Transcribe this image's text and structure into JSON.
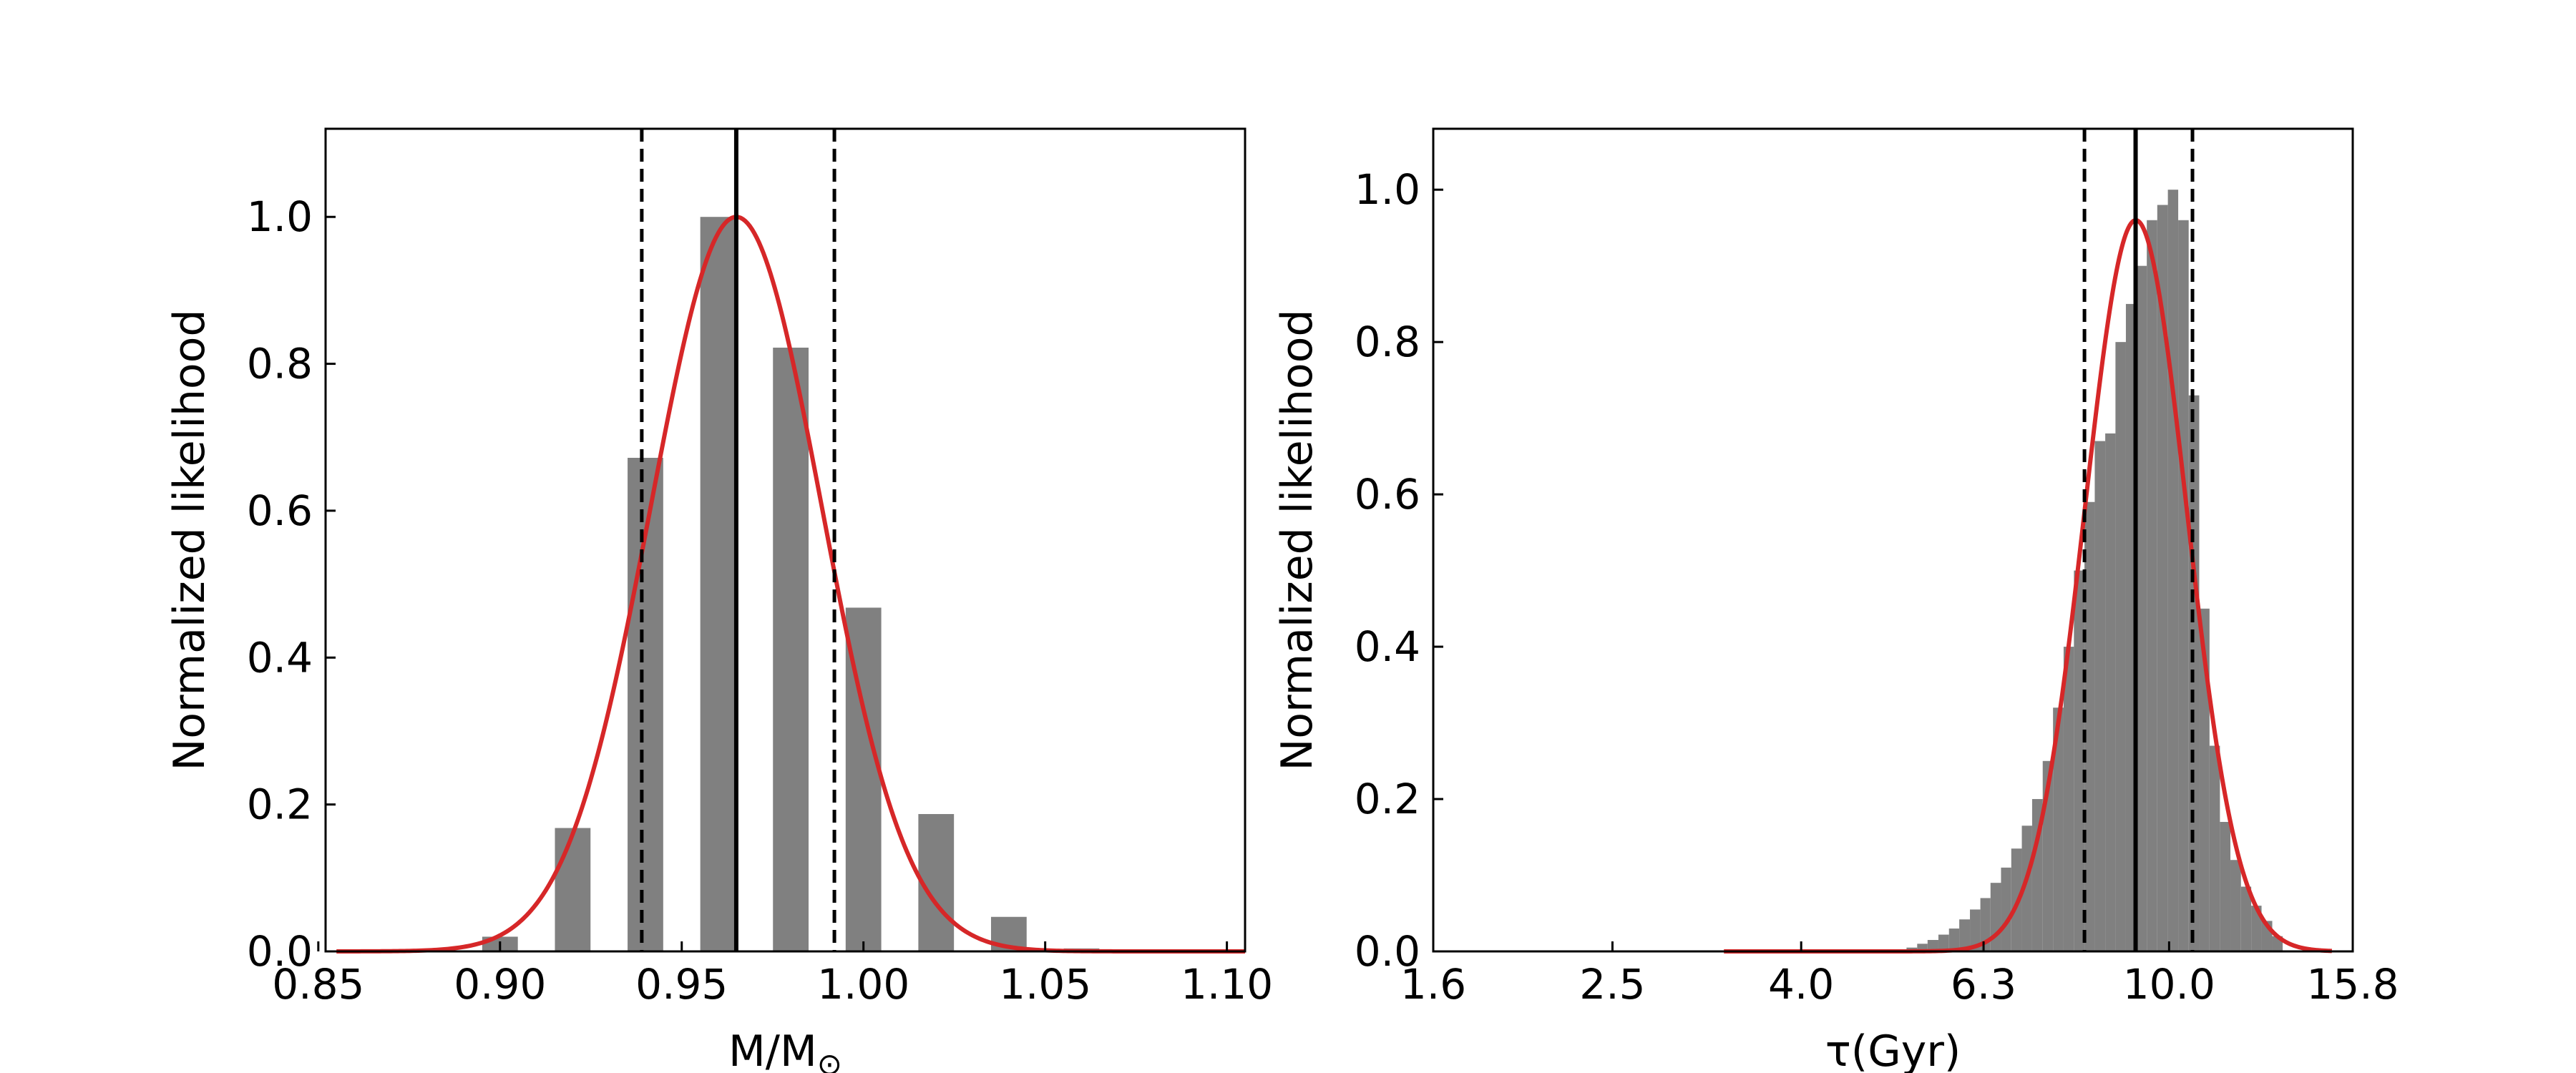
{
  "colors": {
    "bar": "#808080",
    "fit_curve": "#d62728",
    "median_line": "#000000",
    "sigma_lines": "#000000",
    "axes": "#000000",
    "background": "#ffffff"
  },
  "chart_data": [
    {
      "type": "bar",
      "title": "",
      "xlabel_main": "M/M",
      "xlabel_sub": "⊙",
      "ylabel": "Normalized likelihood",
      "xlim": [
        0.852,
        1.105
      ],
      "ylim": [
        0,
        1.12
      ],
      "xticks": [
        0.85,
        0.9,
        0.95,
        1.0,
        1.05,
        1.1
      ],
      "xtick_labels": [
        "0.85",
        "0.90",
        "0.95",
        "1.00",
        "1.05",
        "1.10"
      ],
      "yticks": [
        0.0,
        0.2,
        0.4,
        0.6,
        0.8,
        1.0
      ],
      "ytick_labels": [
        "0.0",
        "0.2",
        "0.4",
        "0.6",
        "0.8",
        "1.0"
      ],
      "bar_width": 0.0098,
      "x": [
        0.9,
        0.92,
        0.94,
        0.96,
        0.98,
        1.0,
        1.02,
        1.04,
        1.06
      ],
      "values": [
        0.02,
        0.168,
        0.672,
        1.0,
        0.822,
        0.468,
        0.187,
        0.047,
        0.004
      ],
      "fit_curve": {
        "mu": 0.965,
        "sigma": 0.0235,
        "amplitude": 1.0,
        "x_range": [
          0.855,
          1.105
        ]
      },
      "median": 0.965,
      "sigma_lines": [
        0.939,
        0.992
      ],
      "grid": false,
      "legend": "none"
    },
    {
      "type": "bar",
      "title": "",
      "xlabel_main": "τ(Gyr)",
      "xlabel_sub": "",
      "ylabel": "Normalized likelihood",
      "x_scale": "log",
      "xlim": [
        1.6,
        15.8
      ],
      "ylim": [
        0,
        1.08
      ],
      "xticks": [
        1.6,
        2.5,
        4.0,
        6.3,
        10.0,
        15.8
      ],
      "xtick_labels": [
        "1.6",
        "2.5",
        "4.0",
        "6.3",
        "10.0",
        "15.8"
      ],
      "yticks": [
        0.0,
        0.2,
        0.4,
        0.6,
        0.8,
        1.0
      ],
      "ytick_labels": [
        "0.0",
        "0.2",
        "0.4",
        "0.6",
        "0.8",
        "1.0"
      ],
      "bin_edges": [
        5.2,
        5.34,
        5.48,
        5.63,
        5.78,
        5.93,
        6.09,
        6.25,
        6.41,
        6.58,
        6.75,
        6.93,
        7.11,
        7.3,
        7.49,
        7.69,
        7.89,
        8.1,
        8.31,
        8.53,
        8.75,
        8.98,
        9.22,
        9.46,
        9.71,
        9.97,
        10.23,
        10.5,
        10.78,
        11.06,
        11.35,
        11.65,
        11.96,
        12.27,
        12.59,
        12.93,
        13.27
      ],
      "values": [
        0.005,
        0.01,
        0.015,
        0.022,
        0.03,
        0.042,
        0.055,
        0.07,
        0.09,
        0.11,
        0.135,
        0.165,
        0.2,
        0.25,
        0.32,
        0.4,
        0.5,
        0.59,
        0.67,
        0.68,
        0.8,
        0.85,
        0.9,
        0.96,
        0.98,
        1.0,
        0.96,
        0.73,
        0.45,
        0.27,
        0.17,
        0.12,
        0.085,
        0.06,
        0.04,
        0.02
      ],
      "fit_curve": {
        "mu_log10": 0.964,
        "sigma_log10": 0.055,
        "amplitude": 0.96,
        "x_range": [
          3.3,
          15.0
        ]
      },
      "median": 9.2,
      "sigma_lines": [
        8.1,
        10.6
      ],
      "grid": false,
      "legend": "none"
    }
  ]
}
